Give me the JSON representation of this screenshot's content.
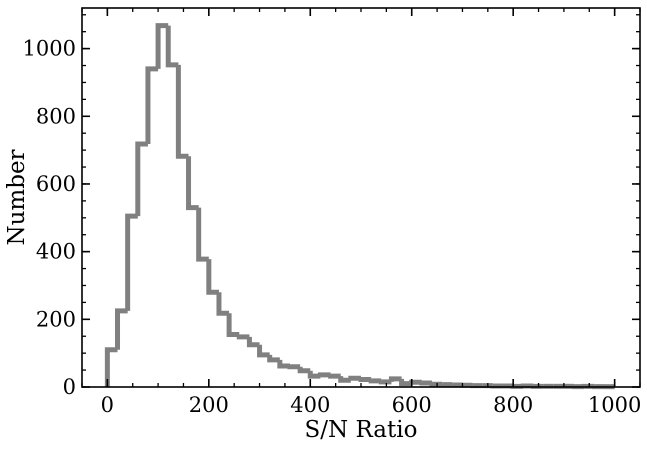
{
  "chart_data": {
    "type": "histogram",
    "xlabel": "S/N Ratio",
    "ylabel": "Number",
    "xlim": [
      -50,
      1050
    ],
    "ylim": [
      0,
      1120
    ],
    "x_ticks": [
      0,
      200,
      400,
      600,
      800,
      1000
    ],
    "y_ticks": [
      0,
      200,
      400,
      600,
      800,
      1000
    ],
    "x_minor_step": 50,
    "y_minor_step": 50,
    "bin_width": 20,
    "bin_edges_start": 0,
    "values": [
      110,
      225,
      505,
      718,
      940,
      1068,
      952,
      682,
      530,
      378,
      280,
      218,
      155,
      148,
      125,
      95,
      80,
      62,
      60,
      48,
      32,
      36,
      32,
      20,
      26,
      22,
      18,
      15,
      24,
      10,
      14,
      12,
      8,
      7,
      6,
      5,
      4,
      4,
      3,
      3,
      2,
      3,
      2,
      2,
      2,
      2,
      1,
      2,
      1,
      1
    ],
    "line_color": "#808080",
    "grid": false
  }
}
